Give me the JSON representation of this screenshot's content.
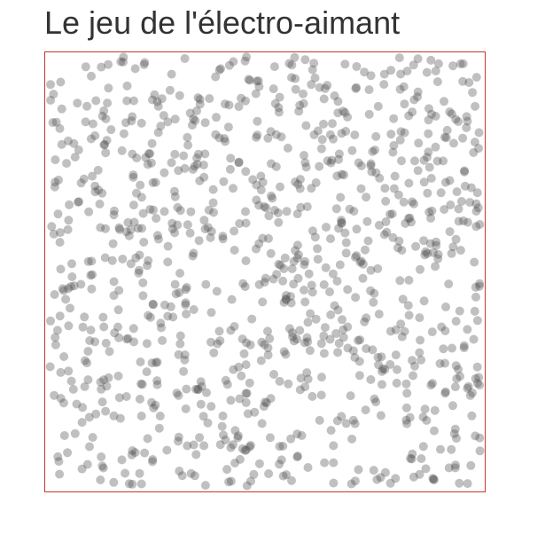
{
  "game": {
    "title": "Le jeu de l'électro-aimant",
    "particle_count": 1000,
    "particle_color": "#4a4a4a",
    "particle_opacity": 0.35,
    "border_color": "#c0392b"
  }
}
